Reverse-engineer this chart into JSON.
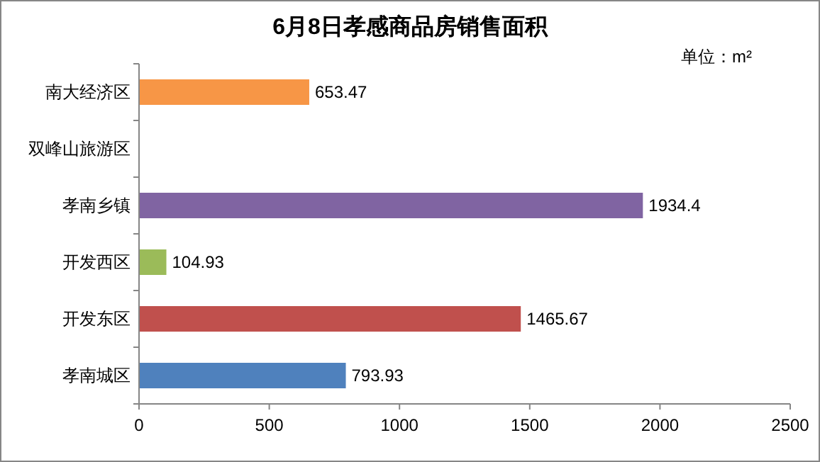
{
  "chart_data": {
    "type": "bar",
    "orientation": "horizontal",
    "title": "6月8日孝感商品房销售面积",
    "annotations": [
      "单位：m²"
    ],
    "categories": [
      "南大经济区",
      "双峰山旅游区",
      "孝南乡镇",
      "开发西区",
      "开发东区",
      "孝南城区"
    ],
    "values": [
      653.47,
      null,
      1934.4,
      104.93,
      1465.67,
      793.93
    ],
    "colors": [
      "#f79646",
      null,
      "#8064a2",
      "#9bbb59",
      "#c0504d",
      "#4f81bd"
    ],
    "xlim": [
      0,
      2500
    ],
    "xticks": [
      0,
      500,
      1000,
      1500,
      2000,
      2500
    ],
    "data_labels": true,
    "grid": false
  }
}
